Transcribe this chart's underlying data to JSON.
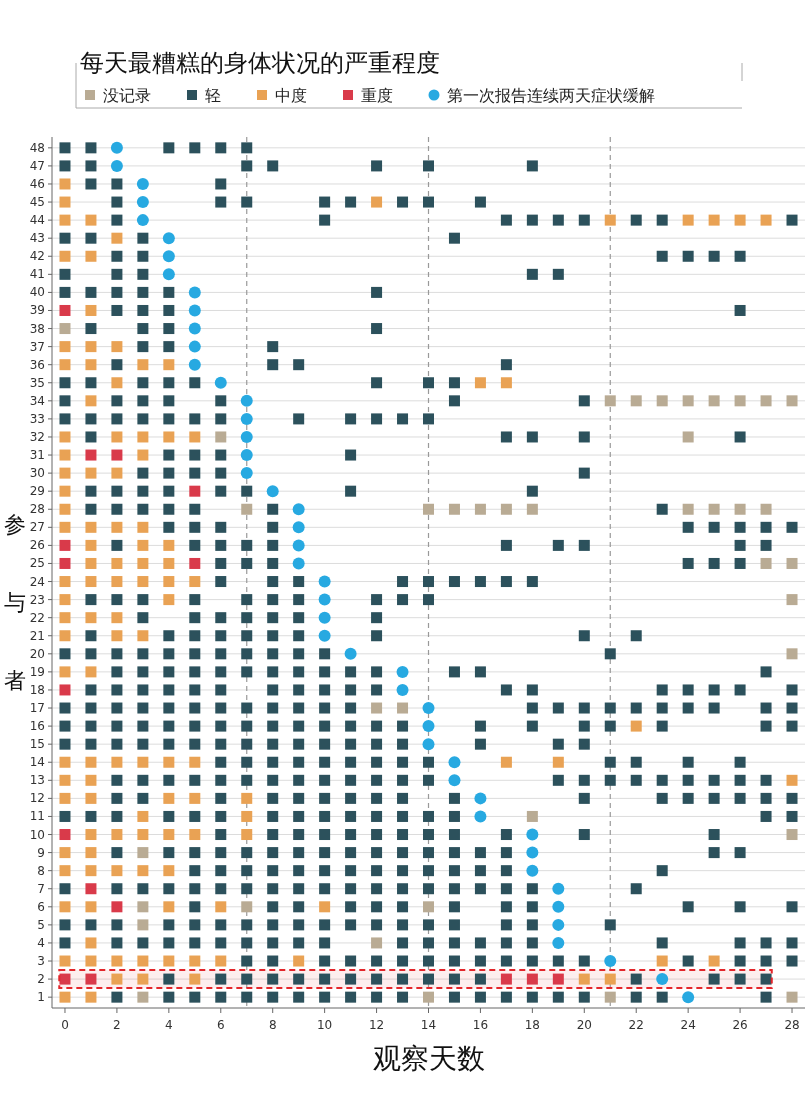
{
  "chart_data": {
    "type": "scatter",
    "legend_title": "每天最糟糕的身体状况的严重程度",
    "xlabel": "观察天数",
    "ylabel": "参与者",
    "xlim": [
      -0.5,
      28.5
    ],
    "xticks": [
      0,
      2,
      4,
      6,
      8,
      10,
      12,
      14,
      16,
      18,
      20,
      22,
      24,
      26,
      28
    ],
    "ylim": [
      0.4,
      48.6
    ],
    "yticks": [
      1,
      2,
      3,
      4,
      5,
      6,
      7,
      8,
      9,
      10,
      11,
      12,
      13,
      14,
      15,
      16,
      17,
      18,
      19,
      20,
      21,
      22,
      23,
      24,
      25,
      26,
      27,
      28,
      29,
      30,
      31,
      32,
      33,
      34,
      35,
      36,
      37,
      38,
      39,
      40,
      41,
      42,
      43,
      44,
      45,
      46,
      47,
      48
    ],
    "grid": "y",
    "legend": "top",
    "ref_lines": [
      {
        "axis": "x",
        "value": 7,
        "color": "#999999",
        "line_style": "dashed"
      },
      {
        "axis": "x",
        "value": 14,
        "color": "#999999",
        "line_style": "dashed"
      },
      {
        "axis": "x",
        "value": 21,
        "color": "#999999",
        "line_style": "dashed"
      }
    ],
    "bands": [
      {
        "axis": "y",
        "from": 1.5,
        "to": 2.5,
        "color": "#e3262b"
      }
    ],
    "series": [
      {
        "name": "没记录",
        "color": "#b9ab94",
        "marker": "square",
        "x": [
          0,
          21,
          22,
          23,
          24,
          25,
          26,
          27,
          28,
          6,
          24,
          7,
          14,
          15,
          16,
          17,
          18,
          24,
          25,
          26,
          27,
          27,
          28,
          28,
          28,
          12,
          13,
          18,
          28,
          3,
          3,
          7,
          14,
          3,
          12,
          3,
          14,
          21,
          28
        ],
        "values": [
          38,
          34,
          34,
          34,
          34,
          34,
          34,
          34,
          34,
          32,
          32,
          28,
          28,
          28,
          28,
          28,
          28,
          28,
          28,
          28,
          28,
          25,
          25,
          23,
          20,
          17,
          17,
          11,
          10,
          9,
          6,
          6,
          6,
          5,
          4,
          1,
          1,
          1,
          1
        ]
      },
      {
        "name": "轻",
        "color": "#2c515c",
        "marker": "square",
        "x": [
          0,
          1,
          4,
          5,
          6,
          7,
          0,
          1,
          7,
          8,
          12,
          14,
          18,
          1,
          2,
          6,
          2,
          6,
          7,
          10,
          11,
          13,
          14,
          16,
          2,
          10,
          17,
          18,
          19,
          20,
          22,
          23,
          28,
          0,
          1,
          3,
          15,
          2,
          3,
          23,
          24,
          25,
          26,
          0,
          2,
          3,
          18,
          19,
          0,
          1,
          2,
          3,
          4,
          12,
          2,
          3,
          4,
          26,
          1,
          3,
          4,
          12,
          3,
          4,
          8,
          2,
          8,
          9,
          17,
          0,
          1,
          3,
          4,
          5,
          12,
          14,
          15,
          0,
          2,
          3,
          4,
          6,
          15,
          20,
          0,
          1,
          2,
          3,
          4,
          5,
          6,
          9,
          11,
          12,
          13,
          14,
          1,
          17,
          18,
          20,
          26,
          4,
          5,
          6,
          11,
          3,
          4,
          5,
          6,
          20,
          1,
          2,
          3,
          4,
          6,
          7,
          11,
          18,
          1,
          2,
          3,
          4,
          5,
          8,
          23,
          4,
          5,
          6,
          8,
          24,
          25,
          26,
          27,
          28,
          2,
          5,
          6,
          7,
          8,
          17,
          19,
          20,
          26,
          27,
          6,
          7,
          8,
          24,
          25,
          26,
          6,
          8,
          9,
          13,
          14,
          15,
          16,
          17,
          18,
          1,
          2,
          3,
          5,
          7,
          8,
          9,
          12,
          13,
          14,
          3,
          5,
          6,
          7,
          8,
          9,
          12,
          1,
          4,
          5,
          6,
          7,
          8,
          9,
          12,
          20,
          22,
          0,
          1,
          2,
          3,
          4,
          5,
          6,
          7,
          8,
          9,
          10,
          21,
          2,
          3,
          4,
          5,
          6,
          7,
          8,
          9,
          10,
          11,
          12,
          15,
          16,
          27,
          1,
          2,
          3,
          4,
          5,
          6,
          8,
          9,
          10,
          11,
          12,
          17,
          18,
          23,
          24,
          25,
          26,
          28,
          0,
          1,
          2,
          3,
          4,
          5,
          6,
          7,
          8,
          9,
          10,
          11,
          18,
          19,
          20,
          21,
          22,
          23,
          24,
          25,
          27,
          28,
          0,
          1,
          2,
          3,
          4,
          5,
          6,
          7,
          8,
          9,
          10,
          11,
          12,
          13,
          16,
          18,
          20,
          21,
          23,
          27,
          28,
          0,
          1,
          2,
          3,
          4,
          5,
          6,
          7,
          8,
          9,
          10,
          11,
          12,
          13,
          16,
          19,
          20,
          6,
          7,
          8,
          9,
          10,
          11,
          12,
          13,
          14,
          21,
          22,
          24,
          26,
          2,
          3,
          4,
          5,
          6,
          7,
          8,
          9,
          10,
          11,
          12,
          13,
          14,
          19,
          20,
          21,
          22,
          23,
          24,
          25,
          26,
          27,
          2,
          3,
          6,
          8,
          9,
          10,
          11,
          12,
          13,
          15,
          20,
          23,
          24,
          25,
          26,
          27,
          28,
          0,
          1,
          2,
          4,
          5,
          6,
          8,
          9,
          10,
          11,
          12,
          13,
          14,
          15,
          27,
          28,
          6,
          8,
          9,
          10,
          11,
          12,
          13,
          14,
          15,
          17,
          20,
          25,
          2,
          4,
          5,
          6,
          7,
          8,
          9,
          10,
          11,
          12,
          13,
          14,
          15,
          16,
          17,
          25,
          26,
          5,
          6,
          7,
          8,
          9,
          10,
          11,
          12,
          13,
          14,
          15,
          16,
          17,
          23,
          0,
          2,
          3,
          4,
          5,
          6,
          7,
          8,
          9,
          10,
          11,
          12,
          13,
          14,
          15,
          16,
          17,
          18,
          22,
          5,
          8,
          9,
          11,
          12,
          13,
          15,
          17,
          18,
          24,
          26,
          28,
          0,
          1,
          2,
          4,
          5,
          6,
          7,
          8,
          9,
          10,
          11,
          12,
          13,
          14,
          15,
          17,
          18,
          21,
          0,
          2,
          3,
          4,
          5,
          6,
          7,
          8,
          9,
          10,
          13,
          14,
          15,
          16,
          17,
          18,
          23,
          26,
          27,
          28,
          7,
          8,
          10,
          11,
          12,
          13,
          14,
          15,
          16,
          17,
          18,
          19,
          20,
          24,
          26,
          27,
          28,
          4,
          6,
          7,
          8,
          9,
          10,
          11,
          12,
          13,
          14,
          15,
          16,
          22,
          25,
          26,
          27,
          2,
          4,
          5,
          6,
          7,
          8,
          9,
          10,
          11,
          12,
          13,
          15,
          16,
          17,
          18,
          19,
          20,
          22,
          23,
          27
        ],
        "values": [
          48,
          48,
          48,
          48,
          48,
          48,
          47,
          47,
          47,
          47,
          47,
          47,
          47,
          46,
          46,
          46,
          45,
          45,
          45,
          45,
          45,
          45,
          45,
          45,
          44,
          44,
          44,
          44,
          44,
          44,
          44,
          44,
          44,
          43,
          43,
          43,
          43,
          42,
          42,
          42,
          42,
          42,
          42,
          41,
          41,
          41,
          41,
          41,
          40,
          40,
          40,
          40,
          40,
          40,
          39,
          39,
          39,
          39,
          38,
          38,
          38,
          38,
          37,
          37,
          37,
          36,
          36,
          36,
          36,
          35,
          35,
          35,
          35,
          35,
          35,
          35,
          35,
          34,
          34,
          34,
          34,
          34,
          34,
          34,
          33,
          33,
          33,
          33,
          33,
          33,
          33,
          33,
          33,
          33,
          33,
          33,
          32,
          32,
          32,
          32,
          32,
          31,
          31,
          31,
          31,
          30,
          30,
          30,
          30,
          30,
          29,
          29,
          29,
          29,
          29,
          29,
          29,
          29,
          28,
          28,
          28,
          28,
          28,
          28,
          28,
          27,
          27,
          27,
          27,
          27,
          27,
          27,
          27,
          27,
          26,
          26,
          26,
          26,
          26,
          26,
          26,
          26,
          26,
          26,
          25,
          25,
          25,
          25,
          25,
          25,
          24,
          24,
          24,
          24,
          24,
          24,
          24,
          24,
          24,
          23,
          23,
          23,
          23,
          23,
          23,
          23,
          23,
          23,
          23,
          22,
          22,
          22,
          22,
          22,
          22,
          22,
          21,
          21,
          21,
          21,
          21,
          21,
          21,
          21,
          21,
          21,
          20,
          20,
          20,
          20,
          20,
          20,
          20,
          20,
          20,
          20,
          20,
          20,
          19,
          19,
          19,
          19,
          19,
          19,
          19,
          19,
          19,
          19,
          19,
          19,
          19,
          19,
          18,
          18,
          18,
          18,
          18,
          18,
          18,
          18,
          18,
          18,
          18,
          18,
          18,
          18,
          18,
          18,
          18,
          18,
          17,
          17,
          17,
          17,
          17,
          17,
          17,
          17,
          17,
          17,
          17,
          17,
          17,
          17,
          17,
          17,
          17,
          17,
          17,
          17,
          17,
          17,
          16,
          16,
          16,
          16,
          16,
          16,
          16,
          16,
          16,
          16,
          16,
          16,
          16,
          16,
          16,
          16,
          16,
          16,
          16,
          16,
          16,
          15,
          15,
          15,
          15,
          15,
          15,
          15,
          15,
          15,
          15,
          15,
          15,
          15,
          15,
          15,
          15,
          15,
          14,
          14,
          14,
          14,
          14,
          14,
          14,
          14,
          14,
          14,
          14,
          14,
          14,
          13,
          13,
          13,
          13,
          13,
          13,
          13,
          13,
          13,
          13,
          13,
          13,
          13,
          13,
          13,
          13,
          13,
          13,
          13,
          13,
          13,
          13,
          12,
          12,
          12,
          12,
          12,
          12,
          12,
          12,
          12,
          12,
          12,
          12,
          12,
          12,
          12,
          12,
          12,
          11,
          11,
          11,
          11,
          11,
          11,
          11,
          11,
          11,
          11,
          11,
          11,
          11,
          11,
          11,
          11,
          10,
          10,
          10,
          10,
          10,
          10,
          10,
          10,
          10,
          10,
          10,
          10,
          9,
          9,
          9,
          9,
          9,
          9,
          9,
          9,
          9,
          9,
          9,
          9,
          9,
          9,
          9,
          9,
          9,
          8,
          8,
          8,
          8,
          8,
          8,
          8,
          8,
          8,
          8,
          8,
          8,
          8,
          8,
          7,
          7,
          7,
          7,
          7,
          7,
          7,
          7,
          7,
          7,
          7,
          7,
          7,
          7,
          7,
          7,
          7,
          7,
          7,
          6,
          6,
          6,
          6,
          6,
          6,
          6,
          6,
          6,
          6,
          6,
          6,
          5,
          5,
          5,
          5,
          5,
          5,
          5,
          5,
          5,
          5,
          5,
          5,
          5,
          5,
          5,
          5,
          5,
          5,
          4,
          4,
          4,
          4,
          4,
          4,
          4,
          4,
          4,
          4,
          4,
          4,
          4,
          4,
          4,
          4,
          4,
          4,
          4,
          4,
          3,
          3,
          3,
          3,
          3,
          3,
          3,
          3,
          3,
          3,
          3,
          3,
          3,
          3,
          3,
          3,
          3,
          2,
          2,
          2,
          2,
          2,
          2,
          2,
          2,
          2,
          2,
          2,
          2,
          2,
          2,
          2,
          2,
          1,
          1,
          1,
          1,
          1,
          1,
          1,
          1,
          1,
          1,
          1,
          1,
          1,
          1,
          1,
          1,
          1,
          1,
          1,
          1
        ]
      },
      {
        "name": "中度",
        "color": "#e9a254",
        "marker": "square",
        "x": [
          0,
          0,
          12,
          0,
          1,
          21,
          24,
          25,
          26,
          27,
          2,
          0,
          1,
          1,
          0,
          1,
          2,
          0,
          1,
          3,
          4,
          2,
          16,
          17,
          1,
          0,
          2,
          3,
          4,
          5,
          0,
          3,
          0,
          1,
          2,
          0,
          0,
          0,
          1,
          2,
          3,
          1,
          3,
          4,
          1,
          2,
          3,
          4,
          0,
          1,
          2,
          3,
          4,
          5,
          0,
          4,
          0,
          1,
          2,
          0,
          2,
          3,
          0,
          1,
          22,
          0,
          1,
          2,
          3,
          4,
          5,
          17,
          19,
          0,
          1,
          28,
          0,
          1,
          4,
          5,
          7,
          3,
          7,
          1,
          2,
          3,
          4,
          5,
          7,
          0,
          1,
          0,
          1,
          2,
          3,
          4,
          0,
          1,
          4,
          6,
          10,
          1,
          0,
          1,
          2,
          3,
          4,
          5,
          6,
          9,
          23,
          25,
          2,
          3,
          5,
          20,
          21,
          0,
          1
        ],
        "values": [
          46,
          45,
          45,
          44,
          44,
          44,
          44,
          44,
          44,
          44,
          43,
          42,
          42,
          39,
          37,
          37,
          37,
          36,
          36,
          36,
          36,
          35,
          35,
          35,
          34,
          32,
          32,
          32,
          32,
          32,
          31,
          31,
          30,
          30,
          30,
          29,
          28,
          27,
          27,
          27,
          27,
          26,
          26,
          26,
          25,
          25,
          25,
          25,
          24,
          24,
          24,
          24,
          24,
          24,
          23,
          23,
          22,
          22,
          22,
          21,
          21,
          21,
          19,
          19,
          16,
          14,
          14,
          14,
          14,
          14,
          14,
          14,
          14,
          13,
          13,
          13,
          12,
          12,
          12,
          12,
          12,
          11,
          11,
          10,
          10,
          10,
          10,
          10,
          10,
          9,
          9,
          8,
          8,
          8,
          8,
          8,
          6,
          6,
          6,
          6,
          6,
          4,
          3,
          3,
          3,
          3,
          3,
          3,
          3,
          3,
          3,
          3,
          2,
          2,
          2,
          2,
          2,
          1,
          1
        ]
      },
      {
        "name": "重度",
        "color": "#d93a4a",
        "marker": "square",
        "x": [
          0,
          1,
          2,
          5,
          0,
          0,
          5,
          0,
          0,
          1,
          2,
          0,
          1,
          17,
          18,
          19
        ],
        "values": [
          39,
          31,
          31,
          29,
          26,
          25,
          25,
          18,
          10,
          7,
          6,
          2,
          2,
          2,
          2,
          2
        ]
      },
      {
        "name": "第一次报告连续两天症状缓解",
        "color": "#27a9e1",
        "marker": "circle",
        "x": [
          2,
          2,
          3,
          3,
          3,
          4,
          4,
          4,
          5,
          5,
          5,
          5,
          5,
          6,
          7,
          7,
          7,
          7,
          7,
          8,
          9,
          9,
          9,
          9,
          10,
          10,
          10,
          10,
          11,
          13,
          13,
          14,
          14,
          14,
          15,
          15,
          16,
          16,
          18,
          18,
          18,
          19,
          19,
          19,
          19,
          21,
          23,
          24
        ],
        "values": [
          48,
          47,
          46,
          45,
          44,
          43,
          42,
          41,
          40,
          39,
          38,
          37,
          36,
          35,
          34,
          33,
          32,
          31,
          30,
          29,
          28,
          27,
          26,
          25,
          24,
          23,
          22,
          21,
          20,
          19,
          18,
          17,
          16,
          15,
          14,
          13,
          12,
          11,
          10,
          9,
          8,
          7,
          6,
          5,
          4,
          3,
          2,
          1
        ]
      }
    ]
  }
}
